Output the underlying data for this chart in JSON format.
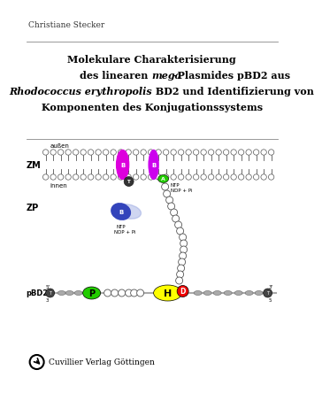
{
  "author": "Christiane Stecker",
  "title_line1": "Molekulare Charakterisierung",
  "title_line2a": "des linearen ",
  "title_line2b": "mega",
  "title_line2c": "-Plasmides pBD2 aus",
  "title_line3a": "Rhodococcus erythropolis",
  "title_line3b": " BD2 und Identifizierung von",
  "title_line4": "Komponenten des Konjugationssystems",
  "publisher": "Cuvillier Verlag Göttingen",
  "bg_color": "#ffffff",
  "zm_label": "ZM",
  "zp_label": "ZP",
  "pbd2_label": "pBD2",
  "aussen_label": "außen",
  "innen_label": "innen",
  "prot1_color": "#dd00dd",
  "prot2_color": "#cc00ee",
  "green_color": "#22cc00",
  "blue_color": "#3344bb",
  "yellow_color": "#ffff00",
  "red_color": "#ee0000",
  "dark_gray": "#666666",
  "light_gray": "#aaaaaa"
}
